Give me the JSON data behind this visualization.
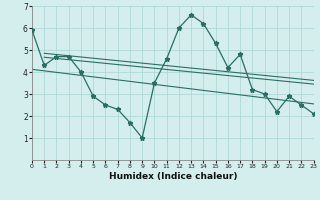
{
  "title": "",
  "xlabel": "Humidex (Indice chaleur)",
  "x_values": [
    0,
    1,
    2,
    3,
    4,
    5,
    6,
    7,
    8,
    9,
    10,
    11,
    12,
    13,
    14,
    15,
    16,
    17,
    18,
    19,
    20,
    21,
    22,
    23
  ],
  "y_main": [
    5.9,
    4.3,
    4.7,
    4.7,
    4.0,
    2.9,
    2.5,
    2.3,
    1.7,
    1.0,
    3.5,
    4.6,
    6.0,
    6.6,
    6.2,
    5.3,
    4.2,
    4.8,
    3.2,
    3.0,
    2.2,
    2.9,
    2.5,
    2.1
  ],
  "xlim": [
    0,
    23
  ],
  "ylim": [
    0,
    7
  ],
  "yticks": [
    1,
    2,
    3,
    4,
    5,
    6,
    7
  ],
  "xtick_labels": [
    "0",
    "1",
    "2",
    "3",
    "4",
    "5",
    "6",
    "7",
    "8",
    "9",
    "10",
    "11",
    "12",
    "13",
    "14",
    "15",
    "16",
    "17",
    "18",
    "19",
    "20",
    "21",
    "22",
    "23"
  ],
  "line_color": "#2a6e62",
  "bg_color": "#d4eeee",
  "grid_color": "#aad4d4",
  "trend1_start_x": 0,
  "trend1_start_y": 4.12,
  "trend1_end_x": 23,
  "trend1_end_y": 2.55,
  "trend2_start_x": 1,
  "trend2_start_y": 4.67,
  "trend2_end_x": 23,
  "trend2_end_y": 3.45,
  "trend3_start_x": 1,
  "trend3_start_y": 4.85,
  "trend3_end_x": 23,
  "trend3_end_y": 3.62
}
